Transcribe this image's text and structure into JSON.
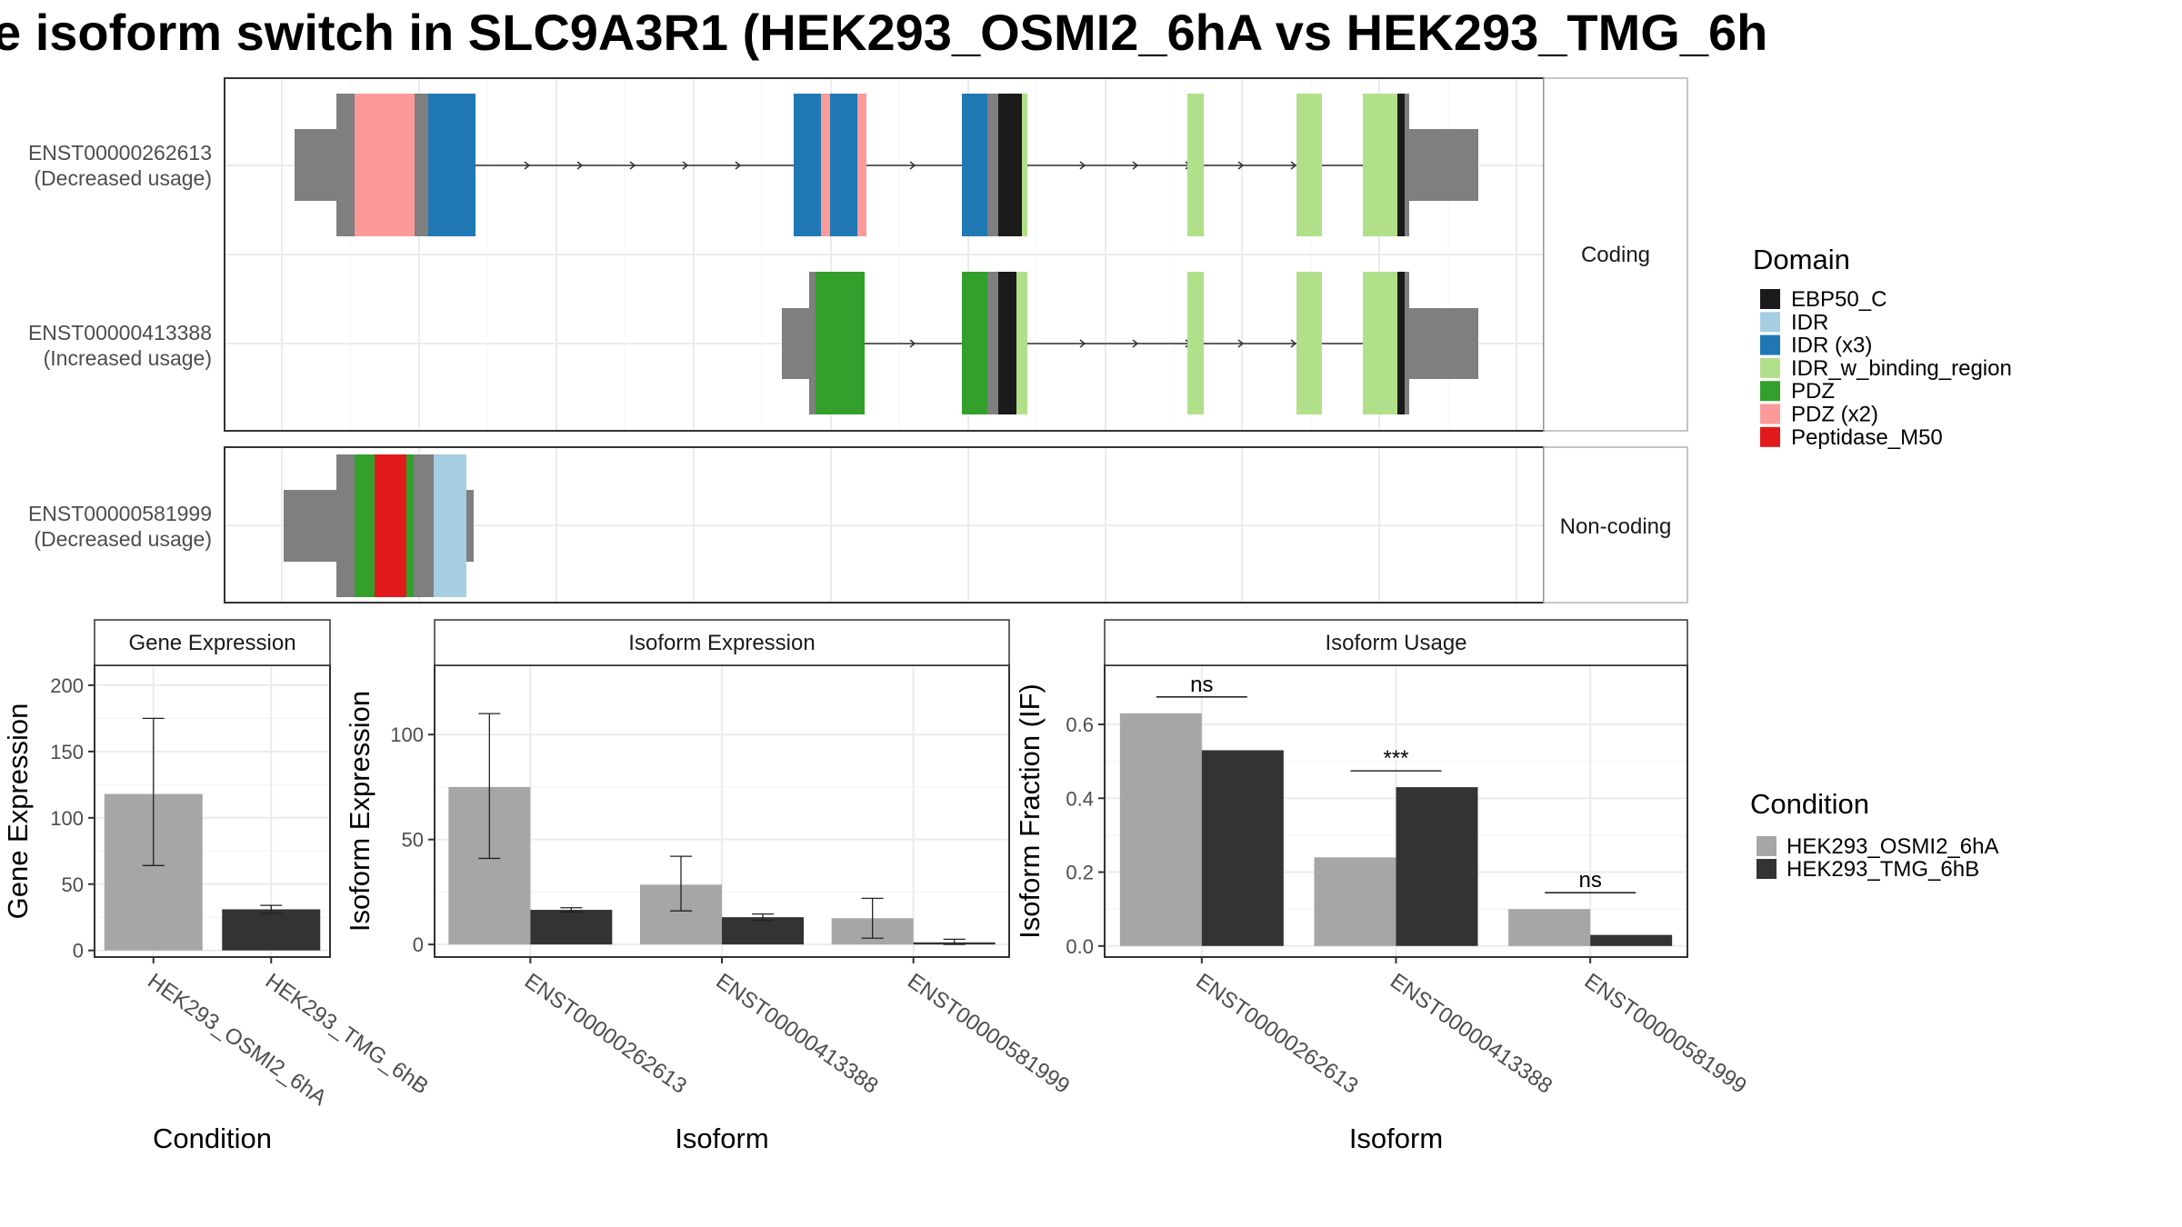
{
  "title": "e isoform switch in SLC9A3R1 (HEK293_OSMI2_6hA vs HEK293_TMG_6h",
  "colors": {
    "EBP50_C": "#1a1a1a",
    "IDR": "#a6cee3",
    "IDR (x3)": "#1f78b4",
    "IDR_w_binding_region": "#b2df8a",
    "PDZ": "#33a02c",
    "PDZ (x2)": "#fb9a99",
    "Peptidase_M50": "#e31a1c",
    "utr": "#7f7f7f",
    "cond1": "#a6a6a6",
    "cond2": "#333333"
  },
  "legend_domain": {
    "title": "Domain",
    "items": [
      {
        "label": "EBP50_C",
        "color": "#1a1a1a"
      },
      {
        "label": "IDR",
        "color": "#a6cee3"
      },
      {
        "label": "IDR (x3)",
        "color": "#1f78b4"
      },
      {
        "label": "IDR_w_binding_region",
        "color": "#b2df8a"
      },
      {
        "label": "PDZ",
        "color": "#33a02c"
      },
      {
        "label": "PDZ (x2)",
        "color": "#fb9a99"
      },
      {
        "label": "Peptidase_M50",
        "color": "#e31a1c"
      }
    ]
  },
  "legend_condition": {
    "title": "Condition",
    "items": [
      {
        "label": "HEK293_OSMI2_6hA",
        "color": "#a6a6a6"
      },
      {
        "label": "HEK293_TMG_6hB",
        "color": "#333333"
      }
    ]
  },
  "structure": {
    "facets": [
      "Coding",
      "Non-coding"
    ],
    "coding_transcripts": [
      {
        "id": "ENST00000262613",
        "note": "(Decreased usage)"
      },
      {
        "id": "ENST00000413388",
        "note": "(Increased usage)"
      }
    ],
    "noncoding_transcripts": [
      {
        "id": "ENST00000581999",
        "note": "(Decreased usage)"
      }
    ]
  },
  "chart_data": [
    {
      "type": "bar",
      "title": "Gene Expression",
      "xlabel": "Condition",
      "ylabel": "Gene Expression",
      "categories": [
        "HEK293_OSMI2_6hA",
        "HEK293_TMG_6hB"
      ],
      "values": [
        118,
        31
      ],
      "error": [
        [
          64,
          175
        ],
        [
          28,
          34
        ]
      ],
      "yticks": [
        0,
        50,
        100,
        150,
        200
      ],
      "ylim": [
        -5,
        215
      ]
    },
    {
      "type": "bar",
      "title": "Isoform Expression",
      "xlabel": "Isoform",
      "ylabel": "Isoform Expression",
      "categories": [
        "ENST00000262613",
        "ENST00000413388",
        "ENST00000581999"
      ],
      "series": [
        {
          "name": "HEK293_OSMI2_6hA",
          "values": [
            75,
            28.5,
            12.5
          ],
          "error": [
            [
              41,
              110
            ],
            [
              16,
              42
            ],
            [
              3,
              22
            ]
          ]
        },
        {
          "name": "HEK293_TMG_6hB",
          "values": [
            16.5,
            13,
            1
          ],
          "error": [
            [
              15.5,
              17.5
            ],
            [
              11.5,
              14.5
            ],
            [
              0,
              2.5
            ]
          ]
        }
      ],
      "yticks": [
        0,
        50,
        100
      ],
      "ylim": [
        -6,
        133
      ]
    },
    {
      "type": "bar",
      "title": "Isoform Usage",
      "xlabel": "Isoform",
      "ylabel": "Isoform Fraction (IF)",
      "categories": [
        "ENST00000262613",
        "ENST00000413388",
        "ENST00000581999"
      ],
      "series": [
        {
          "name": "HEK293_OSMI2_6hA",
          "values": [
            0.63,
            0.24,
            0.1
          ]
        },
        {
          "name": "HEK293_TMG_6hB",
          "values": [
            0.53,
            0.43,
            0.03
          ]
        }
      ],
      "significance": [
        "ns",
        "***",
        "ns"
      ],
      "yticks": [
        0.0,
        0.2,
        0.4,
        0.6
      ],
      "ytick_labels": [
        "0.0",
        "0.2",
        "0.4",
        "0.6"
      ],
      "ylim": [
        -0.03,
        0.76
      ]
    }
  ]
}
